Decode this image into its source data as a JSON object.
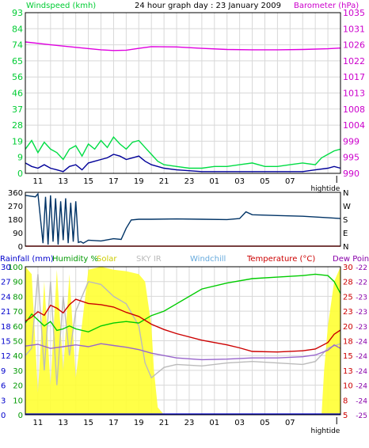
{
  "chart_data": [
    {
      "type": "line",
      "title": "24 hour graph day : 23 January 2009",
      "left_axis": {
        "label": "Windspeed (kmh)",
        "ticks": [
          "0",
          "9",
          "19",
          "28",
          "37",
          "46",
          "56",
          "65",
          "74",
          "84",
          "93"
        ],
        "range": [
          0,
          93
        ]
      },
      "right_axis": {
        "label": "Barometer (hPa)",
        "ticks": [
          "990",
          "995",
          "999",
          "1004",
          "1008",
          "1013",
          "1017",
          "1022",
          "1026",
          "1031",
          "1035"
        ],
        "range": [
          990,
          1035
        ]
      },
      "x_ticks": [
        "11",
        "13",
        "15",
        "17",
        "19",
        "21",
        "23",
        "01",
        "03",
        "05",
        "07"
      ],
      "x_range": [
        10,
        35
      ],
      "tide_label": "hightide",
      "grid": true,
      "series": [
        {
          "axis": "right",
          "color": "#e000e0",
          "x": [
            10,
            12,
            14,
            16,
            17,
            18,
            19,
            20,
            22,
            24,
            26,
            28,
            30,
            32,
            34,
            35
          ],
          "values": [
            1026.8,
            1026.0,
            1025.3,
            1024.6,
            1024.4,
            1024.5,
            1025.0,
            1025.5,
            1025.4,
            1025.0,
            1024.7,
            1024.6,
            1024.6,
            1024.7,
            1024.9,
            1025.1
          ]
        },
        {
          "axis": "left",
          "color": "#00dd44",
          "x": [
            10,
            10.5,
            11,
            11.5,
            12,
            12.5,
            13,
            13.5,
            14,
            14.5,
            15,
            15.5,
            16,
            16.5,
            17,
            17.5,
            18,
            18.5,
            19,
            19.5,
            20,
            20.5,
            21,
            22,
            23,
            24,
            25,
            26,
            27,
            28,
            29,
            30,
            31,
            32,
            33,
            33.5,
            34,
            34.5,
            35
          ],
          "values": [
            14,
            19,
            12,
            18,
            14,
            12,
            8,
            14,
            16,
            10,
            17,
            14,
            19,
            15,
            21,
            17,
            14,
            18,
            19,
            15,
            11,
            7,
            5,
            4,
            3,
            3,
            4,
            4,
            5,
            6,
            4,
            4,
            5,
            6,
            5,
            9,
            11,
            13,
            14
          ]
        },
        {
          "axis": "left",
          "color": "#000099",
          "x": [
            10,
            10.5,
            11,
            11.5,
            12,
            12.5,
            13,
            13.5,
            14,
            14.5,
            15,
            15.5,
            16,
            16.5,
            17,
            17.5,
            18,
            18.5,
            19,
            19.5,
            20,
            21,
            22,
            24,
            26,
            28,
            30,
            32,
            33,
            34,
            34.5,
            35
          ],
          "values": [
            6,
            4,
            3,
            5,
            3,
            2,
            1,
            4,
            5,
            2,
            6,
            7,
            8,
            9,
            11,
            10,
            8,
            9,
            10,
            7,
            5,
            3,
            2,
            1,
            1,
            1,
            1,
            1,
            2,
            3,
            4,
            3
          ]
        }
      ]
    },
    {
      "type": "line",
      "title": "",
      "left_axis": {
        "label": "",
        "ticks": [
          "0",
          "90",
          "180",
          "270",
          "360"
        ],
        "range": [
          0,
          360
        ]
      },
      "right_axis": {
        "label": "",
        "ticks": [
          "N",
          "E",
          "S",
          "W",
          "N"
        ]
      },
      "x_range": [
        10,
        35
      ],
      "series": [
        {
          "axis": "left",
          "color": "#003366",
          "x": [
            10,
            10.8,
            11,
            11.4,
            11.6,
            11.8,
            12,
            12.2,
            12.4,
            12.6,
            12.8,
            13,
            13.2,
            13.4,
            13.6,
            13.8,
            14,
            14.2,
            14.4,
            14.6,
            15,
            16,
            17,
            17.6,
            18,
            18.4,
            19,
            20,
            22,
            24,
            26,
            27,
            27.5,
            28,
            30,
            32,
            34,
            35
          ],
          "values": [
            340,
            330,
            350,
            20,
            330,
            10,
            340,
            30,
            320,
            10,
            300,
            40,
            320,
            20,
            290,
            30,
            300,
            25,
            30,
            20,
            40,
            35,
            50,
            45,
            120,
            175,
            180,
            180,
            182,
            180,
            178,
            185,
            230,
            210,
            205,
            200,
            190,
            185
          ]
        },
        {
          "axis": "left",
          "color": "#dd0000",
          "x": [
            10,
            35
          ],
          "values": [
            0,
            0
          ]
        }
      ]
    },
    {
      "type": "line",
      "title": "",
      "header_labels": [
        "Rainfall (mm)",
        "Humidity %",
        "Solar",
        "SKY IR",
        "Windchill",
        "Temperature (°C)",
        "Dew Point"
      ],
      "header_colors": [
        "#0000cc",
        "#009900",
        "#cccc00",
        "#bbbbbb",
        "#66aadd",
        "#cc0000",
        "#8800aa"
      ],
      "left_axis": {
        "label": "Rainfall (mm) / Humidity %",
        "ticks": [
          "0",
          "10",
          "20",
          "30",
          "40",
          "50",
          "60",
          "70",
          "80",
          "90",
          "100"
        ],
        "range": [
          0,
          100
        ]
      },
      "left_axis_2": {
        "ticks": [
          "0",
          "3",
          "6",
          "9",
          "12",
          "15",
          "18",
          "21",
          "24",
          "27",
          "30"
        ]
      },
      "right_axis": {
        "label": "Temperature (°C)",
        "ticks": [
          "5",
          "8",
          "10",
          "13",
          "15",
          "18",
          "20",
          "23",
          "25",
          "28",
          "30"
        ],
        "range": [
          5,
          30
        ]
      },
      "right_axis_2": {
        "ticks": [
          "-25",
          "-24",
          "-24",
          "-24",
          "-24",
          "-24",
          "-23",
          "-23",
          "-23",
          "-22",
          "-22"
        ]
      },
      "x_ticks": [
        "11",
        "13",
        "15",
        "17",
        "19",
        "21",
        "23",
        "01",
        "03",
        "05",
        "07"
      ],
      "x_range": [
        10,
        35
      ],
      "tide_label": "hightide",
      "grid": true,
      "series": [
        {
          "name": "Solar",
          "axis": "left",
          "color": "#ffff33",
          "fill": true,
          "x": [
            10,
            10.5,
            11,
            11.5,
            12,
            12.5,
            13,
            13.5,
            14,
            15,
            16,
            17,
            18,
            19,
            19.5,
            20,
            20.2,
            20.5,
            21,
            22,
            24,
            26,
            28,
            30,
            32,
            33.5,
            33.7,
            34,
            34.5,
            35
          ],
          "values": [
            100,
            95,
            15,
            90,
            20,
            98,
            30,
            95,
            25,
            98,
            100,
            98,
            97,
            95,
            90,
            60,
            30,
            5,
            0,
            0,
            0,
            0,
            0,
            0,
            0,
            0,
            30,
            60,
            90,
            100
          ]
        },
        {
          "name": "SKY IR",
          "axis": "left",
          "color": "#bbbbbb",
          "x": [
            10,
            10.5,
            11,
            11.5,
            12,
            12.5,
            13,
            13.5,
            14,
            15,
            16,
            17,
            18,
            19,
            19.5,
            20,
            21,
            22,
            24,
            26,
            28,
            30,
            32,
            33,
            34,
            35
          ],
          "values": [
            40,
            45,
            95,
            30,
            90,
            20,
            80,
            40,
            70,
            90,
            88,
            80,
            75,
            60,
            35,
            25,
            32,
            34,
            33,
            35,
            36,
            35,
            34,
            36,
            45,
            48
          ]
        },
        {
          "name": "Humidity %",
          "axis": "left",
          "color": "#00cc00",
          "x": [
            10,
            10.5,
            11,
            11.5,
            12,
            12.5,
            13,
            13.5,
            14,
            15,
            16,
            17,
            18,
            19,
            20,
            21,
            22,
            24,
            26,
            28,
            30,
            32,
            33,
            34,
            34.5,
            35
          ],
          "values": [
            62,
            68,
            64,
            60,
            63,
            57,
            58,
            60,
            58,
            56,
            60,
            62,
            63,
            62,
            67,
            70,
            75,
            85,
            89,
            92,
            93,
            94,
            95,
            94,
            90,
            82
          ]
        },
        {
          "name": "Temperature (°C)",
          "axis": "right",
          "color": "#cc0000",
          "x": [
            10,
            10.5,
            11,
            11.5,
            12,
            12.5,
            13,
            13.5,
            14,
            15,
            16,
            17,
            18,
            19,
            20,
            21,
            22,
            24,
            26,
            27,
            28,
            30,
            32,
            33,
            34,
            34.5,
            35
          ],
          "values": [
            20.8,
            21.5,
            22.4,
            21.8,
            23.5,
            23.0,
            22.2,
            23.6,
            24.5,
            23.8,
            23.6,
            23.2,
            22.3,
            21.6,
            20.3,
            19.4,
            18.7,
            17.6,
            16.8,
            16.3,
            15.7,
            15.6,
            15.8,
            16.1,
            17.2,
            18.6,
            19.3
          ]
        },
        {
          "name": "Dew Point",
          "axis": "right",
          "color": "#9966cc",
          "x": [
            10,
            11,
            12,
            13,
            14,
            15,
            16,
            17,
            18,
            19,
            20,
            21,
            22,
            24,
            26,
            28,
            30,
            32,
            33,
            34,
            34.5,
            35
          ],
          "values": [
            16.6,
            16.9,
            16.2,
            16.5,
            16.8,
            16.5,
            17.0,
            16.7,
            16.4,
            16.0,
            15.4,
            15.0,
            14.6,
            14.3,
            14.4,
            14.6,
            14.6,
            14.8,
            15.1,
            15.9,
            16.8,
            16.2
          ]
        },
        {
          "name": "Rainfall (mm)",
          "axis": "left",
          "color": "#0000cc",
          "x": [
            10,
            35
          ],
          "values": [
            0.5,
            0.5
          ]
        }
      ]
    }
  ]
}
